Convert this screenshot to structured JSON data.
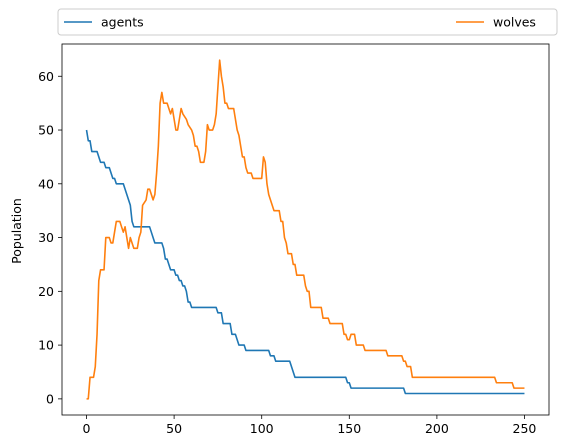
{
  "chart_data": {
    "type": "line",
    "title": "",
    "xlabel": "",
    "ylabel": "Population",
    "xlim": [
      -14,
      264
    ],
    "ylim": [
      -3,
      66
    ],
    "xticks": [
      0,
      50,
      100,
      150,
      200,
      250
    ],
    "yticks": [
      0,
      10,
      20,
      30,
      40,
      50,
      60
    ],
    "grid": false,
    "legend": {
      "placement": "top, above plot, spanning width",
      "columns": 2
    },
    "series": [
      {
        "name": "agents",
        "color": "#1f77b4",
        "points": [
          [
            0,
            50
          ],
          [
            1,
            48
          ],
          [
            2,
            48
          ],
          [
            3,
            46
          ],
          [
            6,
            46
          ],
          [
            7,
            45
          ],
          [
            8,
            44
          ],
          [
            10,
            44
          ],
          [
            11,
            43
          ],
          [
            13,
            43
          ],
          [
            14,
            42
          ],
          [
            15,
            41
          ],
          [
            16,
            41
          ],
          [
            17,
            40
          ],
          [
            21,
            40
          ],
          [
            22,
            39
          ],
          [
            23,
            38
          ],
          [
            24,
            37
          ],
          [
            25,
            36
          ],
          [
            26,
            33
          ],
          [
            27,
            32
          ],
          [
            36,
            32
          ],
          [
            37,
            31
          ],
          [
            38,
            30
          ],
          [
            39,
            29
          ],
          [
            43,
            29
          ],
          [
            44,
            28
          ],
          [
            45,
            26
          ],
          [
            46,
            26
          ],
          [
            47,
            25
          ],
          [
            48,
            24
          ],
          [
            50,
            24
          ],
          [
            51,
            23
          ],
          [
            52,
            23
          ],
          [
            53,
            22
          ],
          [
            54,
            22
          ],
          [
            55,
            21
          ],
          [
            56,
            21
          ],
          [
            57,
            20
          ],
          [
            58,
            18
          ],
          [
            59,
            18
          ],
          [
            60,
            17
          ],
          [
            74,
            17
          ],
          [
            75,
            16
          ],
          [
            77,
            16
          ],
          [
            78,
            14
          ],
          [
            82,
            14
          ],
          [
            83,
            12
          ],
          [
            85,
            12
          ],
          [
            86,
            11
          ],
          [
            87,
            10
          ],
          [
            90,
            10
          ],
          [
            91,
            9
          ],
          [
            104,
            9
          ],
          [
            105,
            8
          ],
          [
            107,
            8
          ],
          [
            108,
            7
          ],
          [
            116,
            7
          ],
          [
            117,
            6
          ],
          [
            118,
            5
          ],
          [
            119,
            4
          ],
          [
            148,
            4
          ],
          [
            149,
            3
          ],
          [
            150,
            3
          ],
          [
            151,
            2
          ],
          [
            181,
            2
          ],
          [
            182,
            1
          ],
          [
            250,
            1
          ]
        ]
      },
      {
        "name": "wolves",
        "color": "#ff7f0e",
        "points": [
          [
            0,
            0
          ],
          [
            1,
            0
          ],
          [
            2,
            4
          ],
          [
            4,
            4
          ],
          [
            5,
            6
          ],
          [
            6,
            12
          ],
          [
            7,
            22
          ],
          [
            8,
            24
          ],
          [
            10,
            24
          ],
          [
            11,
            30
          ],
          [
            13,
            30
          ],
          [
            14,
            29
          ],
          [
            15,
            29
          ],
          [
            16,
            31
          ],
          [
            17,
            33
          ],
          [
            19,
            33
          ],
          [
            20,
            32
          ],
          [
            21,
            31
          ],
          [
            22,
            32
          ],
          [
            23,
            30
          ],
          [
            24,
            28
          ],
          [
            25,
            30
          ],
          [
            26,
            29
          ],
          [
            27,
            28
          ],
          [
            29,
            28
          ],
          [
            30,
            30
          ],
          [
            31,
            31
          ],
          [
            32,
            36
          ],
          [
            34,
            37
          ],
          [
            35,
            39
          ],
          [
            36,
            39
          ],
          [
            37,
            38
          ],
          [
            38,
            37
          ],
          [
            39,
            38
          ],
          [
            40,
            42
          ],
          [
            41,
            47
          ],
          [
            42,
            55
          ],
          [
            43,
            57
          ],
          [
            44,
            55
          ],
          [
            46,
            55
          ],
          [
            47,
            54
          ],
          [
            48,
            53
          ],
          [
            49,
            54
          ],
          [
            50,
            52
          ],
          [
            51,
            50
          ],
          [
            52,
            50
          ],
          [
            53,
            52
          ],
          [
            54,
            54
          ],
          [
            55,
            53
          ],
          [
            57,
            52
          ],
          [
            58,
            51
          ],
          [
            60,
            50
          ],
          [
            61,
            49
          ],
          [
            62,
            47
          ],
          [
            63,
            47
          ],
          [
            64,
            46
          ],
          [
            65,
            44
          ],
          [
            67,
            44
          ],
          [
            68,
            46
          ],
          [
            69,
            51
          ],
          [
            70,
            50
          ],
          [
            72,
            50
          ],
          [
            73,
            51
          ],
          [
            74,
            53
          ],
          [
            75,
            58
          ],
          [
            76,
            63
          ],
          [
            77,
            60
          ],
          [
            78,
            58
          ],
          [
            79,
            55
          ],
          [
            80,
            55
          ],
          [
            81,
            54
          ],
          [
            84,
            54
          ],
          [
            85,
            52
          ],
          [
            86,
            50
          ],
          [
            87,
            49
          ],
          [
            88,
            47
          ],
          [
            89,
            45
          ],
          [
            90,
            45
          ],
          [
            91,
            43
          ],
          [
            92,
            42
          ],
          [
            94,
            42
          ],
          [
            95,
            41
          ],
          [
            100,
            41
          ],
          [
            101,
            45
          ],
          [
            102,
            44
          ],
          [
            103,
            40
          ],
          [
            104,
            38
          ],
          [
            105,
            37
          ],
          [
            106,
            36
          ],
          [
            107,
            35
          ],
          [
            110,
            35
          ],
          [
            111,
            33
          ],
          [
            112,
            33
          ],
          [
            113,
            30
          ],
          [
            114,
            29
          ],
          [
            115,
            27
          ],
          [
            117,
            27
          ],
          [
            118,
            25
          ],
          [
            119,
            25
          ],
          [
            120,
            23
          ],
          [
            124,
            23
          ],
          [
            125,
            21
          ],
          [
            126,
            20
          ],
          [
            127,
            20
          ],
          [
            128,
            17
          ],
          [
            134,
            17
          ],
          [
            135,
            15
          ],
          [
            138,
            15
          ],
          [
            139,
            14
          ],
          [
            146,
            14
          ],
          [
            147,
            12
          ],
          [
            148,
            12
          ],
          [
            149,
            11
          ],
          [
            150,
            11
          ],
          [
            151,
            12
          ],
          [
            153,
            12
          ],
          [
            154,
            10
          ],
          [
            158,
            10
          ],
          [
            159,
            9
          ],
          [
            171,
            9
          ],
          [
            172,
            8
          ],
          [
            180,
            8
          ],
          [
            181,
            7
          ],
          [
            182,
            7
          ],
          [
            183,
            6
          ],
          [
            185,
            6
          ],
          [
            186,
            4
          ],
          [
            233,
            4
          ],
          [
            234,
            3
          ],
          [
            243,
            3
          ],
          [
            244,
            2
          ],
          [
            250,
            2
          ]
        ]
      }
    ]
  }
}
